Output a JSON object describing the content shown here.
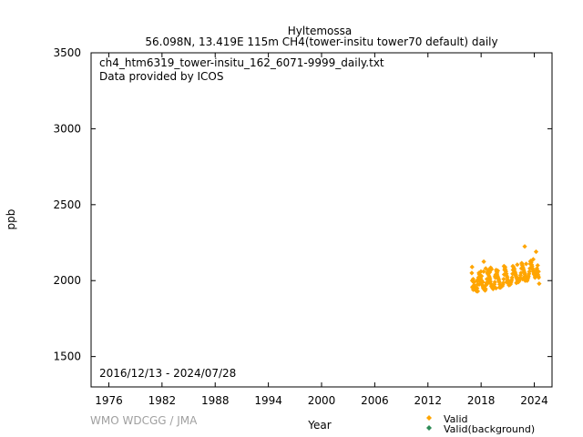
{
  "header": {
    "station": "Hyltemossa",
    "subtitle": "56.098N, 13.419E 115m    CH4(tower-insitu tower70 default) daily"
  },
  "annotations": {
    "filename": "ch4_htm6319_tower-insitu_162_6071-9999_daily.txt",
    "provider": "Data provided by ICOS",
    "date_range": "2016/12/13 - 2024/07/28"
  },
  "footer": {
    "credit": "WMO WDCGG / JMA"
  },
  "colors": {
    "valid": "#ffa500",
    "background": "#2e8b57",
    "axis": "#000000",
    "credit": "#a0a0a0"
  },
  "chart_data": {
    "type": "scatter",
    "xlabel": "Year",
    "ylabel": "ppb",
    "xlim": [
      1974,
      2026
    ],
    "ylim": [
      1300,
      3500
    ],
    "x_ticks": [
      1976,
      1982,
      1988,
      1994,
      2000,
      2006,
      2012,
      2018,
      2024
    ],
    "y_ticks": [
      1500,
      2000,
      2500,
      3000,
      3500
    ],
    "grid": false,
    "legend_position": "bottom-right",
    "series": [
      {
        "name": "Valid",
        "marker": "diamond",
        "color": "#ffa500",
        "x": [
          2016.95,
          2017.0,
          2017.05,
          2017.1,
          2017.15,
          2017.2,
          2017.25,
          2017.3,
          2017.35,
          2017.4,
          2017.45,
          2017.5,
          2017.55,
          2017.6,
          2017.65,
          2017.7,
          2017.75,
          2017.8,
          2017.85,
          2017.9,
          2017.95,
          2018.0,
          2018.05,
          2018.1,
          2018.15,
          2018.2,
          2018.25,
          2018.3,
          2018.35,
          2018.4,
          2018.45,
          2018.5,
          2018.55,
          2018.6,
          2018.65,
          2018.7,
          2018.75,
          2018.8,
          2018.85,
          2018.9,
          2018.95,
          2019.0,
          2019.05,
          2019.1,
          2019.15,
          2019.2,
          2019.25,
          2019.3,
          2019.35,
          2019.4,
          2019.45,
          2019.5,
          2019.55,
          2019.6,
          2019.65,
          2019.7,
          2019.75,
          2019.8,
          2019.85,
          2019.9,
          2019.95,
          2020.0,
          2020.05,
          2020.1,
          2020.15,
          2020.2,
          2020.25,
          2020.3,
          2020.35,
          2020.4,
          2020.45,
          2020.5,
          2020.55,
          2020.6,
          2020.65,
          2020.7,
          2020.75,
          2020.8,
          2020.85,
          2020.9,
          2020.95,
          2021.0,
          2021.05,
          2021.1,
          2021.15,
          2021.2,
          2021.25,
          2021.3,
          2021.35,
          2021.4,
          2021.45,
          2021.5,
          2021.55,
          2021.6,
          2021.65,
          2021.7,
          2021.75,
          2021.8,
          2021.85,
          2021.9,
          2021.95,
          2022.0,
          2022.05,
          2022.1,
          2022.15,
          2022.2,
          2022.25,
          2022.3,
          2022.35,
          2022.4,
          2022.45,
          2022.5,
          2022.55,
          2022.6,
          2022.65,
          2022.7,
          2022.75,
          2022.8,
          2022.85,
          2022.9,
          2022.95,
          2023.0,
          2023.05,
          2023.1,
          2023.15,
          2023.2,
          2023.25,
          2023.3,
          2023.35,
          2023.4,
          2023.45,
          2023.5,
          2023.55,
          2023.6,
          2023.65,
          2023.7,
          2023.75,
          2023.8,
          2023.85,
          2023.9,
          2023.95,
          2024.0,
          2024.05,
          2024.1,
          2024.15,
          2024.2,
          2024.25,
          2024.3,
          2024.35,
          2024.4,
          2024.45,
          2024.5,
          2024.55,
          2016.98,
          2017.02,
          2017.12,
          2017.22,
          2017.52,
          2017.62,
          2017.78,
          2017.88,
          2017.98,
          2018.08,
          2018.18,
          2018.28,
          2018.52,
          2018.62,
          2018.78,
          2018.88,
          2018.98,
          2019.08,
          2019.18,
          2019.58,
          2019.68,
          2019.78,
          2019.88,
          2019.98,
          2020.08,
          2020.58,
          2020.68,
          2020.88,
          2020.98,
          2021.08,
          2021.58,
          2021.68,
          2021.88,
          2021.98,
          2022.08,
          2022.58,
          2022.68,
          2022.88,
          2022.98,
          2023.08,
          2023.58,
          2023.68,
          2023.88,
          2023.98,
          2024.08,
          2024.38,
          2024.48,
          2018.3,
          2022.92,
          2024.2
        ],
        "y": [
          2050,
          2000,
          1960,
          2010,
          1990,
          1970,
          1950,
          1945,
          1940,
          1955,
          1935,
          1930,
          1950,
          1975,
          2000,
          2020,
          2050,
          2040,
          2010,
          2030,
          2015,
          1990,
          2030,
          1985,
          1970,
          1960,
          1950,
          1945,
          1950,
          1940,
          1935,
          1945,
          1970,
          1985,
          2010,
          2050,
          2060,
          2040,
          2070,
          2030,
          2020,
          2010,
          1995,
          1980,
          1965,
          1960,
          1955,
          1950,
          1945,
          1955,
          1960,
          1975,
          1990,
          2020,
          2040,
          2070,
          2060,
          2050,
          2030,
          2020,
          2010,
          2000,
          1990,
          1975,
          1960,
          1955,
          1960,
          1965,
          1970,
          1965,
          1975,
          1985,
          2010,
          2040,
          2070,
          2090,
          2070,
          2060,
          2045,
          2030,
          2020,
          2005,
          1995,
          1980,
          1970,
          1975,
          1980,
          1975,
          1985,
          1995,
          2005,
          2020,
          2045,
          2070,
          2090,
          2080,
          2075,
          2060,
          2050,
          2040,
          2030,
          2020,
          2010,
          2000,
          1995,
          1990,
          1995,
          2000,
          2010,
          2020,
          2035,
          2050,
          2080,
          2110,
          2100,
          2090,
          2080,
          2070,
          2060,
          2050,
          2040,
          2030,
          2020,
          2010,
          2005,
          2000,
          2010,
          2020,
          2030,
          2045,
          2060,
          2080,
          2110,
          2130,
          2120,
          2105,
          2095,
          2080,
          2070,
          2060,
          2050,
          2045,
          2040,
          2030,
          2030,
          2050,
          2070,
          2080,
          2060,
          2040,
          2030,
          2020,
          1980,
          2090,
          1955,
          1940,
          1990,
          2000,
          1930,
          1975,
          2000,
          2060,
          2000,
          1990,
          2060,
          2080,
          1975,
          1985,
          2000,
          2055,
          2085,
          2075,
          2030,
          1950,
          2040,
          2065,
          2010,
          1955,
          2095,
          2080,
          1990,
          2000,
          1985,
          2095,
          2050,
          2035,
          1985,
          2105,
          2115,
          2010,
          2025,
          2000,
          2110,
          2125,
          2085,
          2140,
          2040,
          2020,
          2100,
          2060,
          2125,
          2225,
          2190
        ]
      },
      {
        "name": "Valid(background)",
        "marker": "diamond",
        "color": "#2e8b57",
        "x": [],
        "y": []
      }
    ]
  }
}
